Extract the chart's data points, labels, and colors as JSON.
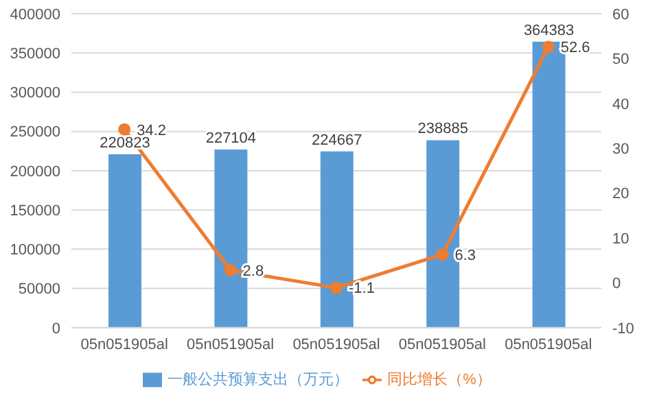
{
  "chart_data": {
    "type": "bar",
    "categories": [
      "05n051905al",
      "05n051905al",
      "05n051905al",
      "05n051905al",
      "05n051905al"
    ],
    "series": [
      {
        "name": "一般公共预算支出（万元）",
        "color": "#5b9bd5",
        "values": [
          220823,
          227104,
          224667,
          238885,
          364383
        ]
      },
      {
        "name": "同比增长（%）",
        "type": "line",
        "axis": "y2",
        "color": "#ed7d31",
        "values": [
          34.2,
          2.8,
          -1.1,
          6.3,
          52.6
        ]
      }
    ],
    "ylim": [
      0,
      400000
    ],
    "yticks": [
      0,
      50000,
      100000,
      150000,
      200000,
      250000,
      300000,
      350000,
      400000
    ],
    "y2lim": [
      -10,
      60
    ],
    "y2ticks": [
      -10,
      0,
      10,
      20,
      30,
      40,
      50,
      60
    ],
    "grid": "y",
    "legend": "bottom",
    "marker": "circle",
    "data_labels": true
  }
}
